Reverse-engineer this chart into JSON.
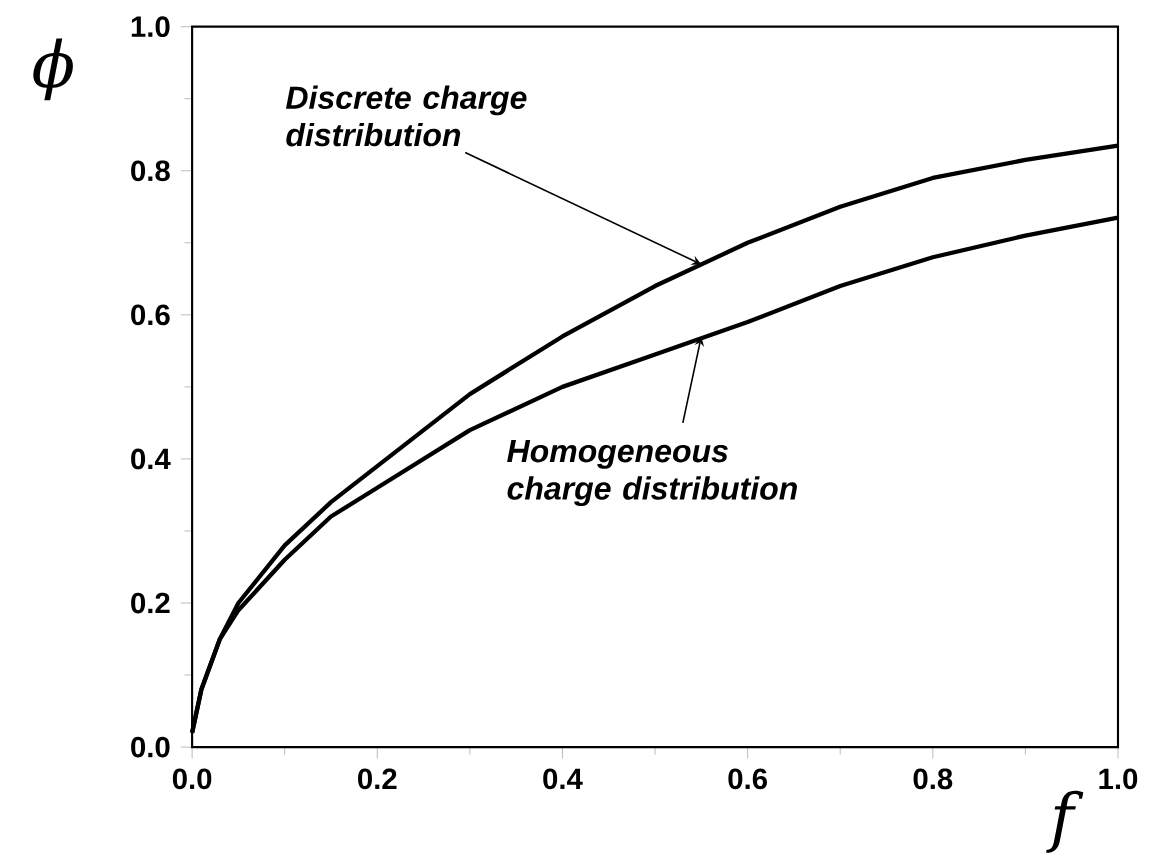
{
  "chart_data": {
    "type": "line",
    "xlabel": "f",
    "ylabel": "ϕ",
    "xlim": [
      0,
      1
    ],
    "ylim": [
      0,
      1
    ],
    "xticks": [
      {
        "value": 0,
        "label": "0.0"
      },
      0.2,
      0.4,
      0.6,
      0.8,
      {
        "value": 1,
        "label": "1.0"
      }
    ],
    "yticks": [
      {
        "value": 0,
        "label": "0.0"
      },
      0.2,
      0.4,
      0.6,
      0.8,
      {
        "value": 1,
        "label": "1.0"
      }
    ],
    "x": [
      0,
      0.01,
      0.03,
      0.05,
      0.1,
      0.15,
      0.2,
      0.3,
      0.4,
      0.5,
      0.6,
      0.7,
      0.8,
      0.9,
      1.0
    ],
    "series": [
      {
        "color": "#000000",
        "values": [
          0.02,
          0.08,
          0.15,
          0.2,
          0.28,
          0.34,
          0.39,
          0.49,
          0.57,
          0.64,
          0.7,
          0.75,
          0.79,
          0.815,
          0.835
        ]
      },
      {
        "color": "#000000",
        "values": [
          0.02,
          0.08,
          0.15,
          0.19,
          0.26,
          0.32,
          0.36,
          0.44,
          0.5,
          0.545,
          0.59,
          0.64,
          0.68,
          0.71,
          0.735
        ]
      }
    ],
    "annotations": [
      {
        "text": "Discrete charge distribution",
        "x": 0.55,
        "y": 0.67
      },
      {
        "text": "Homogeneous charge distribution",
        "x": 0.55,
        "y": 0.57
      }
    ],
    "marker": "none",
    "line_style": "solid",
    "grid": false
  }
}
